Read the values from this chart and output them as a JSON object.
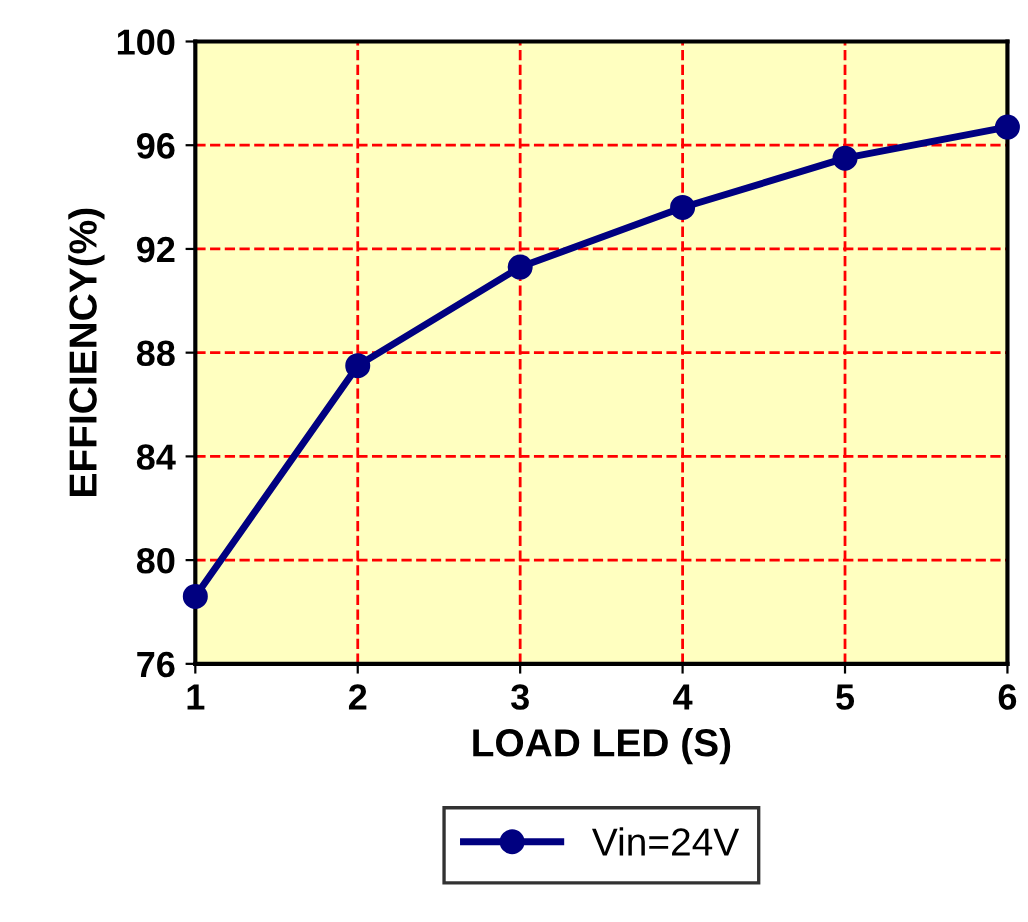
{
  "chart_data": {
    "type": "line",
    "xlabel": "LOAD LED (S)",
    "ylabel": "EFFICIENCY(%)",
    "x": [
      1,
      2,
      3,
      4,
      5,
      6
    ],
    "series": [
      {
        "name": "Vin=24V",
        "color": "#000080",
        "values": [
          78.6,
          87.5,
          91.3,
          93.6,
          95.5,
          96.7
        ]
      }
    ],
    "xlim": [
      1,
      6
    ],
    "xticks": [
      1,
      2,
      3,
      4,
      5,
      6
    ],
    "ylim": [
      76,
      100
    ],
    "yticks": [
      76,
      80,
      84,
      88,
      92,
      96,
      100
    ],
    "grid": true,
    "legend": "bottom",
    "marker": "circle",
    "line_style": "solid"
  }
}
